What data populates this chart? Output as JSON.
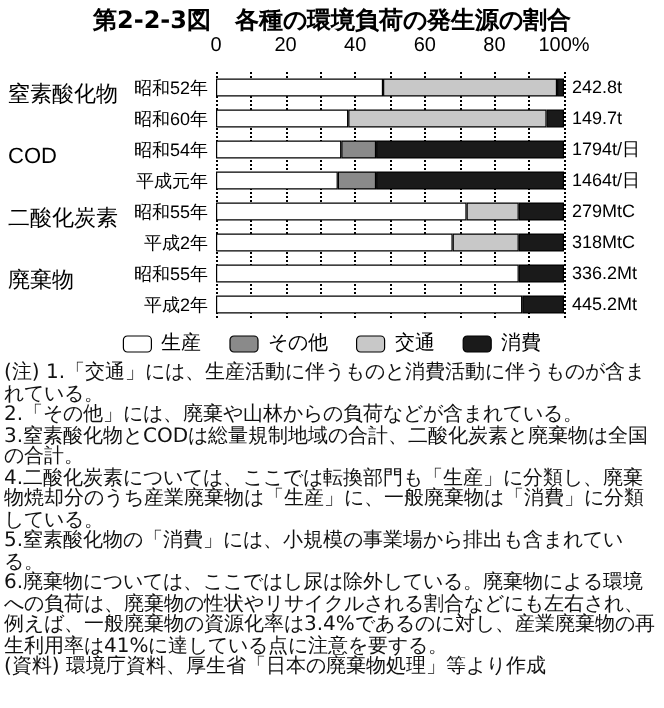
{
  "chart_data": {
    "type": "bar",
    "orientation": "horizontal",
    "stacked": true,
    "title": "第2-2-3図　各種の環境負荷の発生源の割合",
    "categories": [
      "昭和52年",
      "昭和60年",
      "昭和54年",
      "平成元年",
      "昭和55年",
      "平成2年",
      "昭和55年",
      "平成2年"
    ],
    "series": [
      {
        "name": "生産",
        "color": "#ffffff",
        "values": [
          48,
          38,
          36,
          35,
          72,
          68,
          87,
          88
        ]
      },
      {
        "name": "その他",
        "color": "#8a8a8a",
        "values": [
          0,
          0,
          10,
          11,
          0,
          0,
          0,
          0
        ]
      },
      {
        "name": "交通",
        "color": "#c8c8c8",
        "values": [
          50,
          57,
          0,
          0,
          15,
          19,
          0,
          0
        ]
      },
      {
        "name": "消費",
        "color": "#1a1a1a",
        "values": [
          2,
          5,
          54,
          54,
          13,
          13,
          13,
          12
        ]
      }
    ],
    "xlim": [
      0,
      100
    ],
    "xticks": [
      0,
      {
        "value": 10,
        "label": null
      },
      20,
      {
        "value": 30,
        "label": null
      },
      40,
      {
        "value": 50,
        "label": null
      },
      60,
      {
        "value": 70,
        "label": null
      },
      80,
      {
        "value": 90,
        "label": null
      },
      {
        "value": 100,
        "label": "100%"
      }
    ],
    "grid": "x",
    "legend": "bottom",
    "annotations": [
      "窒素酸化物",
      "COD",
      "二酸化炭素",
      "廃棄物",
      "242.8t",
      "149.7t",
      "1794t/日",
      "1464t/日",
      "279MtC",
      "318MtC",
      "336.2Mt",
      "445.2Mt",
      "(注) 1.「交通」には、生産活動に伴うものと消費活動に伴うものが含まれている。",
      "2.「その他」には、廃棄や山林からの負荷などが含まれている。",
      "3.窒素酸化物とCODは総量規制地域の合計、二酸化炭素と廃棄物は全国の合計。",
      "4.二酸化炭素については、ここでは転換部門も「生産」に分類し、廃棄物焼却分のうち産業廃棄物は「生産」に、一般廃棄物は「消費」に分類している。",
      "5.窒素酸化物の「消費」には、小規模の事業場から排出も含まれている。",
      "6.廃棄物については、ここではし尿は除外している。廃棄物による環境への負荷は、廃棄物の性状やリサイクルされる割合などにも左右され、例えば、一般廃棄物の資源化率は3.4%であるのに対し、産業廃棄物の再生利用率は41%に達している点に注意を要する。",
      "(資料) 環境庁資料、厚生省「日本の廃棄物処理」等より作成"
    ]
  }
}
